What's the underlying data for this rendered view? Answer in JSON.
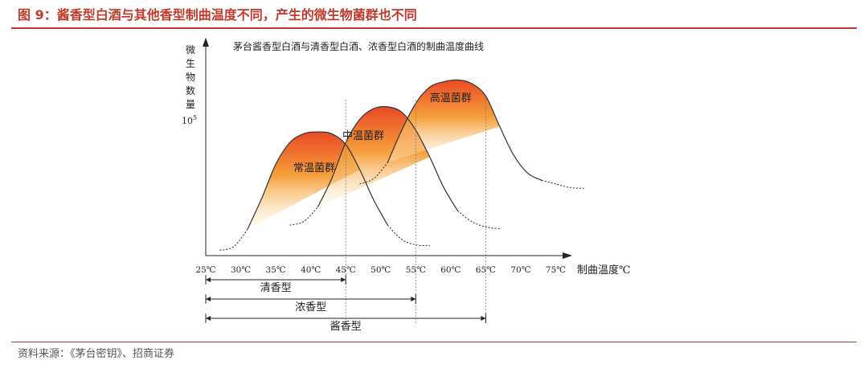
{
  "header": {
    "figure_title": "图 9：酱香型白酒与其他香型制曲温度不同，产生的微生物菌群也不同"
  },
  "footer": {
    "source": "资料来源：《茅台密钥》、招商证券"
  },
  "colors": {
    "accent": "#c0392b",
    "fill_top": "#e8401a",
    "fill_mid": "#f59a30",
    "fill_bottom": "#fff6dc"
  },
  "chart_data": {
    "type": "area",
    "title": "茅台酱香型白酒与清香型白酒、浓香型白酒的制曲温度曲线",
    "xlabel": "制曲温度℃",
    "ylabel_chars": [
      "微",
      "生",
      "物",
      "数",
      "量"
    ],
    "ylabel_unit": "10",
    "ylabel_unit_exp": "5",
    "x_ticks": [
      "25℃",
      "30℃",
      "35℃",
      "40℃",
      "45℃",
      "50℃",
      "55℃",
      "60℃",
      "65℃",
      "70℃",
      "75℃"
    ],
    "x_tick_values": [
      25,
      30,
      35,
      40,
      45,
      50,
      55,
      60,
      65,
      70,
      75
    ],
    "xlim": [
      25,
      80
    ],
    "ylim": [
      0,
      10
    ],
    "series": [
      {
        "name": "常温菌群",
        "x": [
          27,
          29,
          31,
          33,
          35,
          37,
          39,
          41,
          43,
          45,
          47,
          49,
          51,
          53,
          55,
          57
        ],
        "y": [
          0.3,
          0.5,
          1.5,
          3.2,
          5.1,
          6.3,
          6.8,
          6.9,
          6.8,
          6.2,
          4.8,
          3.1,
          1.7,
          0.9,
          0.6,
          0.55
        ],
        "label_x": 40.5,
        "label_y": 4.7
      },
      {
        "name": "中温菌群",
        "x": [
          37,
          39,
          41,
          43,
          45,
          47,
          49,
          51,
          53,
          55,
          57,
          59,
          61,
          63,
          65,
          67
        ],
        "y": [
          1.7,
          1.9,
          2.7,
          4.3,
          6.3,
          7.6,
          8.2,
          8.3,
          8.0,
          7.0,
          5.5,
          3.8,
          2.5,
          1.9,
          1.6,
          1.5
        ],
        "label_x": 47.5,
        "label_y": 6.5
      },
      {
        "name": "高温菌群",
        "x": [
          47,
          49,
          51,
          53,
          55,
          57,
          59,
          61,
          63,
          65,
          67,
          69,
          71,
          73,
          75,
          77,
          79
        ],
        "y": [
          4.0,
          4.3,
          5.2,
          7.0,
          8.5,
          9.4,
          9.7,
          9.8,
          9.6,
          8.9,
          7.2,
          5.6,
          4.6,
          4.2,
          4.0,
          3.8,
          3.75
        ],
        "label_x": 60,
        "label_y": 8.6
      }
    ],
    "ranges": [
      {
        "name": "清香型",
        "from": 25,
        "to": 45
      },
      {
        "name": "浓香型",
        "from": 25,
        "to": 55
      },
      {
        "name": "酱香型",
        "from": 25,
        "to": 65
      }
    ],
    "reference_lines_x": [
      45,
      55,
      65
    ],
    "grid": false,
    "legend": "none"
  }
}
